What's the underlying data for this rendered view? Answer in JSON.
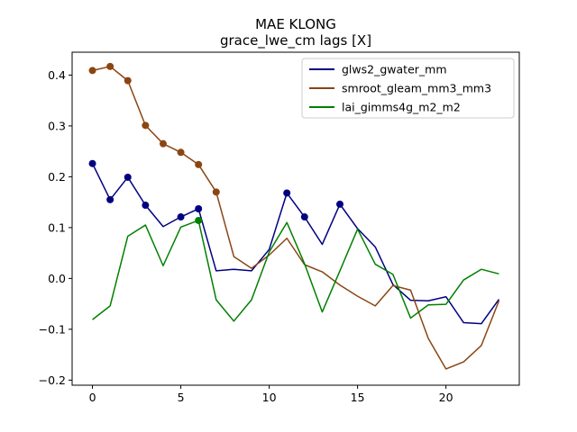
{
  "chart_data": {
    "type": "line",
    "title": "MAE KLONG",
    "subtitle": "grace_lwe_cm lags [X]",
    "xlabel": "",
    "ylabel": "",
    "xlim": [
      -1.15,
      24.15
    ],
    "ylim": [
      -0.21,
      0.445
    ],
    "xticks": [
      0,
      5,
      10,
      15,
      20
    ],
    "yticks": [
      -0.2,
      -0.1,
      0.0,
      0.1,
      0.2,
      0.3,
      0.4
    ],
    "ytick_labels": [
      "−0.2",
      "−0.1",
      "0.0",
      "0.1",
      "0.2",
      "0.3",
      "0.4"
    ],
    "grid": false,
    "legend_position": "upper right",
    "x": [
      0,
      1,
      2,
      3,
      4,
      5,
      6,
      7,
      8,
      9,
      10,
      11,
      12,
      13,
      14,
      15,
      16,
      17,
      18,
      19,
      20,
      21,
      22,
      23
    ],
    "series": [
      {
        "name": "glws2_gwater_mm",
        "color": "#000080",
        "values": [
          0.226,
          0.155,
          0.199,
          0.144,
          0.102,
          0.121,
          0.137,
          0.015,
          0.018,
          0.015,
          0.057,
          0.168,
          0.121,
          0.067,
          0.146,
          0.098,
          0.062,
          -0.012,
          -0.043,
          -0.044,
          -0.036,
          -0.087,
          -0.089,
          -0.041
        ],
        "markers": [
          0,
          1,
          2,
          3,
          5,
          6,
          11,
          12,
          14
        ]
      },
      {
        "name": "smroot_gleam_mm3_mm3",
        "color": "#8B4513",
        "values": [
          0.409,
          0.417,
          0.389,
          0.301,
          0.265,
          0.248,
          0.224,
          0.17,
          0.043,
          0.02,
          0.046,
          0.079,
          0.027,
          0.013,
          -0.013,
          -0.035,
          -0.054,
          -0.014,
          -0.023,
          -0.118,
          -0.178,
          -0.164,
          -0.132,
          -0.044
        ],
        "markers": [
          0,
          1,
          2,
          3,
          4,
          5,
          6,
          7
        ]
      },
      {
        "name": "lai_gimms4g_m2_m2",
        "color": "#008000",
        "values": [
          -0.081,
          -0.054,
          0.083,
          0.105,
          0.025,
          0.101,
          0.114,
          -0.042,
          -0.084,
          -0.042,
          0.052,
          0.11,
          0.029,
          -0.066,
          0.015,
          0.097,
          0.028,
          0.008,
          -0.078,
          -0.052,
          -0.051,
          -0.003,
          0.018,
          0.009
        ],
        "markers": [
          6
        ]
      }
    ]
  }
}
